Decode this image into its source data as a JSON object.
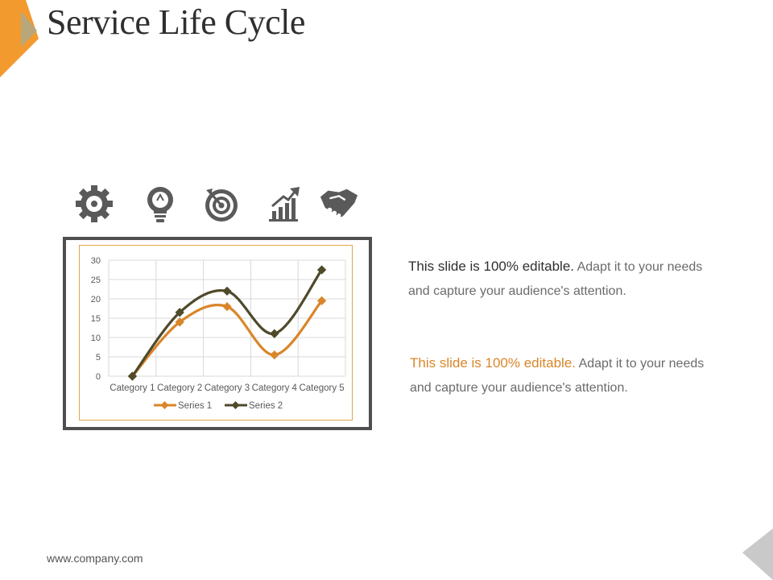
{
  "title": "Service Life Cycle",
  "icons": [
    "gear-icon",
    "lightbulb-icon",
    "target-icon",
    "growth-chart-icon",
    "handshake-icon"
  ],
  "text_blocks": [
    {
      "lead": "This slide is 100% editable.",
      "body": "Adapt it to your needs and capture your audience's attention."
    },
    {
      "lead": "This slide is 100% editable.",
      "body": "Adapt it to your needs and capture your audience's attention."
    }
  ],
  "footer": "www.company.com",
  "colors": {
    "accent_orange": "#f29a2e",
    "series1": "#d9862a",
    "series2": "#4e4a2a",
    "frame": "#4f4f4f",
    "icon_gray": "#5a5a5a",
    "corner_gray": "#c9c9c9"
  },
  "chart_data": {
    "type": "line",
    "categories": [
      "Category 1",
      "Category 2",
      "Category 3",
      "Category 4",
      "Category 5"
    ],
    "series": [
      {
        "name": "Series 1",
        "values": [
          0,
          14,
          18,
          5.5,
          19.5
        ],
        "color": "#d9862a"
      },
      {
        "name": "Series 2",
        "values": [
          0,
          16.5,
          22,
          11,
          27.5
        ],
        "color": "#4e4a2a"
      }
    ],
    "ylim": [
      0,
      30
    ],
    "yticks": [
      0,
      5,
      10,
      15,
      20,
      25,
      30
    ],
    "grid": true,
    "smooth": true,
    "legend": "bottom"
  }
}
